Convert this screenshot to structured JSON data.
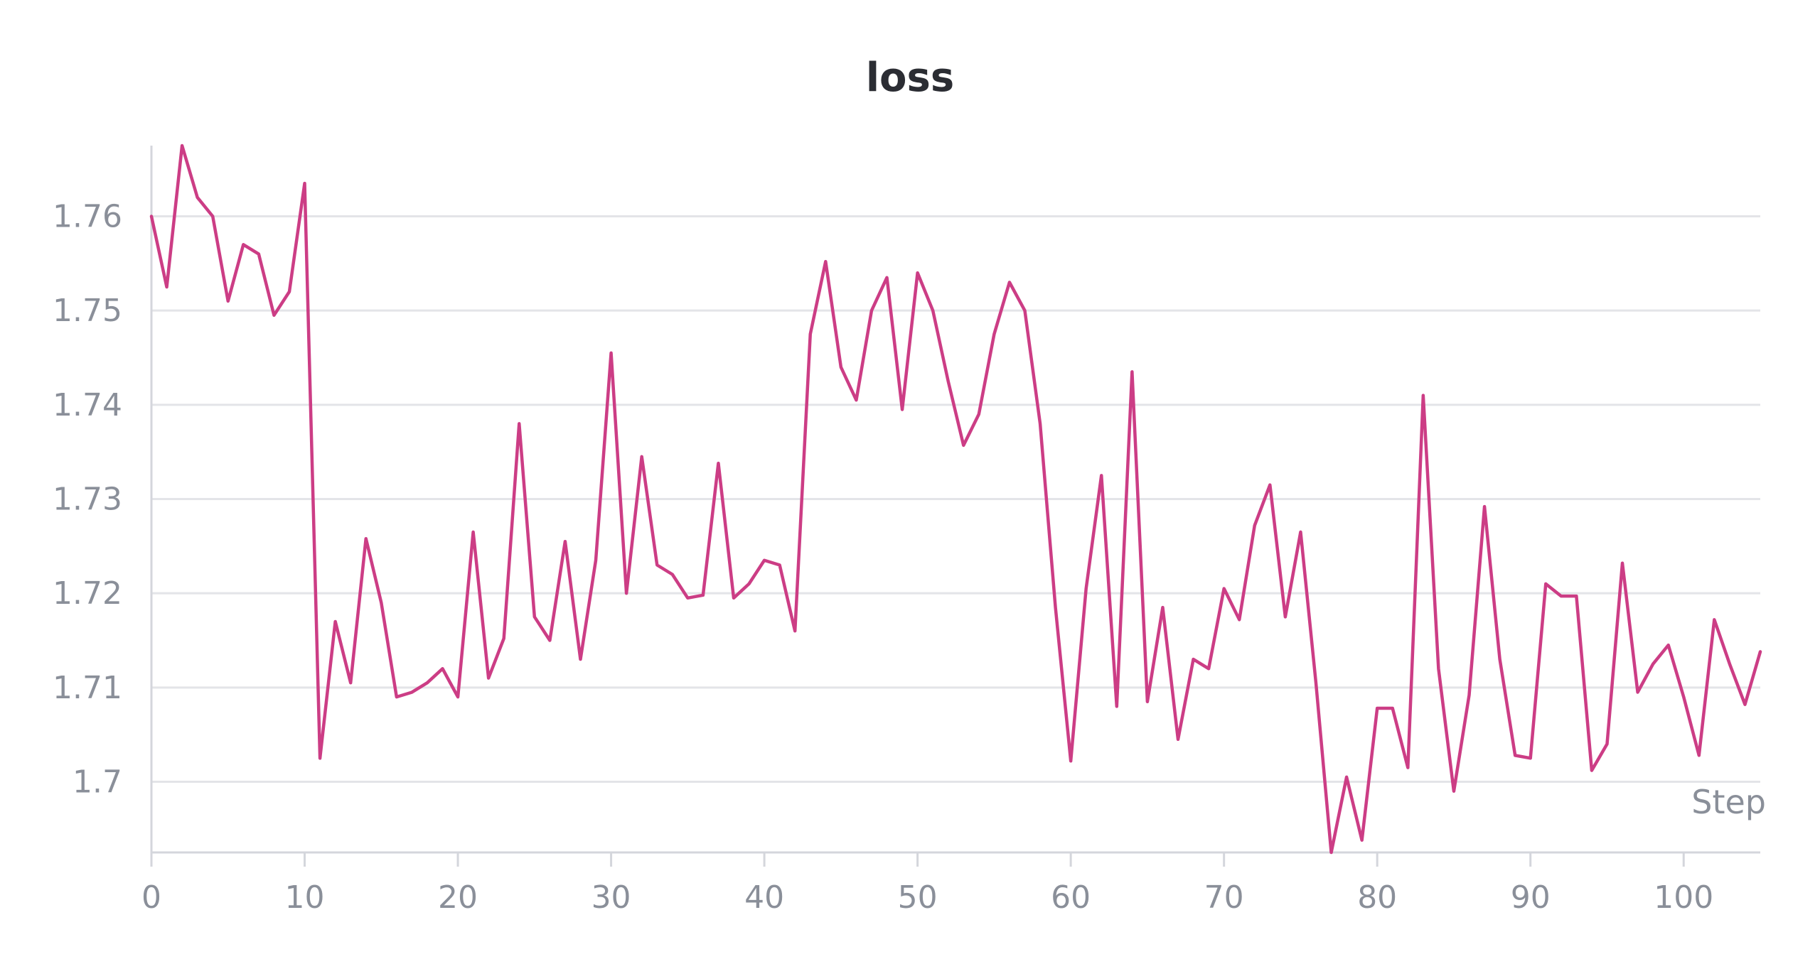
{
  "chart_data": {
    "type": "line",
    "title": "loss",
    "xlabel": "Step",
    "ylabel": "",
    "xlim": [
      0,
      105
    ],
    "ylim": [
      1.6925,
      1.7675
    ],
    "xticks": [
      0,
      10,
      20,
      30,
      40,
      50,
      60,
      70,
      80,
      90,
      100
    ],
    "xtick_labels": [
      "0",
      "10",
      "20",
      "30",
      "40",
      "50",
      "60",
      "70",
      "80",
      "90",
      "100"
    ],
    "yticks": [
      1.7,
      1.71,
      1.72,
      1.73,
      1.74,
      1.75,
      1.76
    ],
    "ytick_labels": [
      "1.7",
      "1.71",
      "1.72",
      "1.73",
      "1.74",
      "1.75",
      "1.76"
    ],
    "grid": "horizontal",
    "legend": "none",
    "colors": {
      "line": "#cc3d85",
      "grid": "#e3e4e8",
      "axis": "#d4d6dc",
      "text": "#8a8f99",
      "title": "#2b2d33"
    },
    "series": [
      {
        "x": [
          0,
          1,
          2,
          3,
          4,
          5,
          6,
          7,
          8,
          9,
          10,
          11,
          12,
          13,
          14,
          15,
          16,
          17,
          18,
          19,
          20,
          21,
          22,
          23,
          24,
          25,
          26,
          27,
          28,
          29,
          30,
          31,
          32,
          33,
          34,
          35,
          36,
          37,
          38,
          39,
          40,
          41,
          42,
          43,
          44,
          45,
          46,
          47,
          48,
          49,
          50,
          51,
          52,
          53,
          54,
          55,
          56,
          57,
          58,
          59,
          60,
          61,
          62,
          63,
          64,
          65,
          66,
          67,
          68,
          69,
          70,
          71,
          72,
          73,
          74,
          75,
          76,
          77,
          78,
          79,
          80,
          81,
          82,
          83,
          84,
          85,
          86,
          87,
          88,
          89,
          90,
          91,
          92,
          93,
          94,
          95,
          96,
          97,
          98,
          99,
          100,
          101,
          102,
          103,
          104,
          105
        ],
        "values": [
          1.76,
          1.7525,
          1.7675,
          1.762,
          1.76,
          1.751,
          1.757,
          1.756,
          1.7495,
          1.752,
          1.7635,
          1.7025,
          1.717,
          1.7105,
          1.7258,
          1.719,
          1.709,
          1.7095,
          1.7105,
          1.712,
          1.709,
          1.7265,
          1.711,
          1.7152,
          1.738,
          1.7175,
          1.715,
          1.7255,
          1.713,
          1.7235,
          1.7455,
          1.72,
          1.7345,
          1.723,
          1.722,
          1.7195,
          1.7198,
          1.7338,
          1.7195,
          1.721,
          1.7235,
          1.723,
          1.716,
          1.7475,
          1.7552,
          1.744,
          1.7405,
          1.75,
          1.7535,
          1.7395,
          1.754,
          1.75,
          1.7425,
          1.7357,
          1.739,
          1.7475,
          1.753,
          1.75,
          1.738,
          1.7185,
          1.7022,
          1.7205,
          1.7325,
          1.708,
          1.7435,
          1.7085,
          1.7185,
          1.7045,
          1.713,
          1.712,
          1.7205,
          1.7172,
          1.7272,
          1.7315,
          1.7175,
          1.7265,
          1.7105,
          1.6925,
          1.7005,
          1.6938,
          1.7078,
          1.7078,
          1.7015,
          1.741,
          1.712,
          1.699,
          1.7092,
          1.7292,
          1.713,
          1.7028,
          1.7025,
          1.721,
          1.7197,
          1.7197,
          1.7012,
          1.704,
          1.7232,
          1.7095,
          1.7125,
          1.7145,
          1.709,
          1.7028,
          1.7172,
          1.7125,
          1.7082,
          1.7138
        ]
      }
    ]
  }
}
